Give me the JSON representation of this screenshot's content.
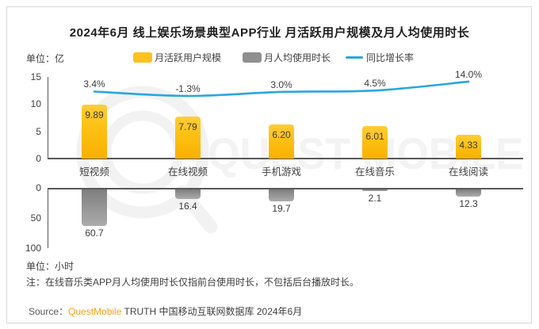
{
  "card": {
    "title": "2024年6月 线上娱乐场景典型APP行业 月活跃用户规模及月人均使用时长",
    "unit_top": "单位：亿",
    "unit_bottom": "单位：小时",
    "note": "注：在线音乐类APP月人均使用时长仅指前台使用时长，不包括后台播放时长。",
    "source_prefix": "Source：",
    "source_brand": "QuestMobile",
    "source_suffix": " TRUTH 中国移动互联网数据库 2024年6月",
    "watermark_text": "QUEST MOBILE"
  },
  "legend": [
    {
      "label": "月活跃用户规模",
      "type": "bar",
      "color": "#ffc120"
    },
    {
      "label": "月人均使用时长",
      "type": "bar",
      "color": "#909090"
    },
    {
      "label": "同比增长率",
      "type": "line",
      "color": "#29a7dd"
    }
  ],
  "colors": {
    "bar_mau": "#ffc120",
    "bar_hours": "#8c8c8c",
    "growth_line": "#29a7dd",
    "axis": "#595959",
    "brand_orange": "#f7a11a",
    "watermark": "#f2f2f2"
  },
  "chart_data": {
    "type": "bar",
    "subtype": "dual-panel combo (bars + growth line)",
    "title": "2024年6月 线上娱乐场景典型APP行业 月活跃用户规模及月人均使用时长",
    "categories": [
      "短视频",
      "在线视频",
      "手机游戏",
      "在线音乐",
      "在线阅读"
    ],
    "series": [
      {
        "name": "月活跃用户规模",
        "type": "bar",
        "unit": "亿",
        "panel": "upper",
        "values": [
          9.89,
          7.79,
          6.2,
          6.01,
          4.33
        ],
        "labels": [
          "9.89",
          "7.79",
          "6.20",
          "6.01",
          "4.33"
        ],
        "ylim": [
          0,
          15
        ],
        "axis_ticks": [
          15,
          10,
          5,
          0
        ]
      },
      {
        "name": "月人均使用时长",
        "type": "bar",
        "unit": "小时",
        "panel": "lower",
        "inverted": true,
        "values": [
          60.7,
          16.4,
          19.7,
          2.1,
          12.3
        ],
        "labels": [
          "60.7",
          "16.4",
          "19.7",
          "2.1",
          "12.3"
        ],
        "ylim": [
          0,
          100
        ],
        "axis_ticks": [
          0,
          50,
          100
        ]
      },
      {
        "name": "同比增长率",
        "type": "line",
        "unit": "%",
        "values": [
          3.4,
          -1.3,
          3.0,
          4.5,
          14.0
        ],
        "labels": [
          "3.4%",
          "-1.3%",
          "3.0%",
          "4.5%",
          "14.0%"
        ]
      }
    ],
    "legend_position": "top",
    "grid": false
  }
}
